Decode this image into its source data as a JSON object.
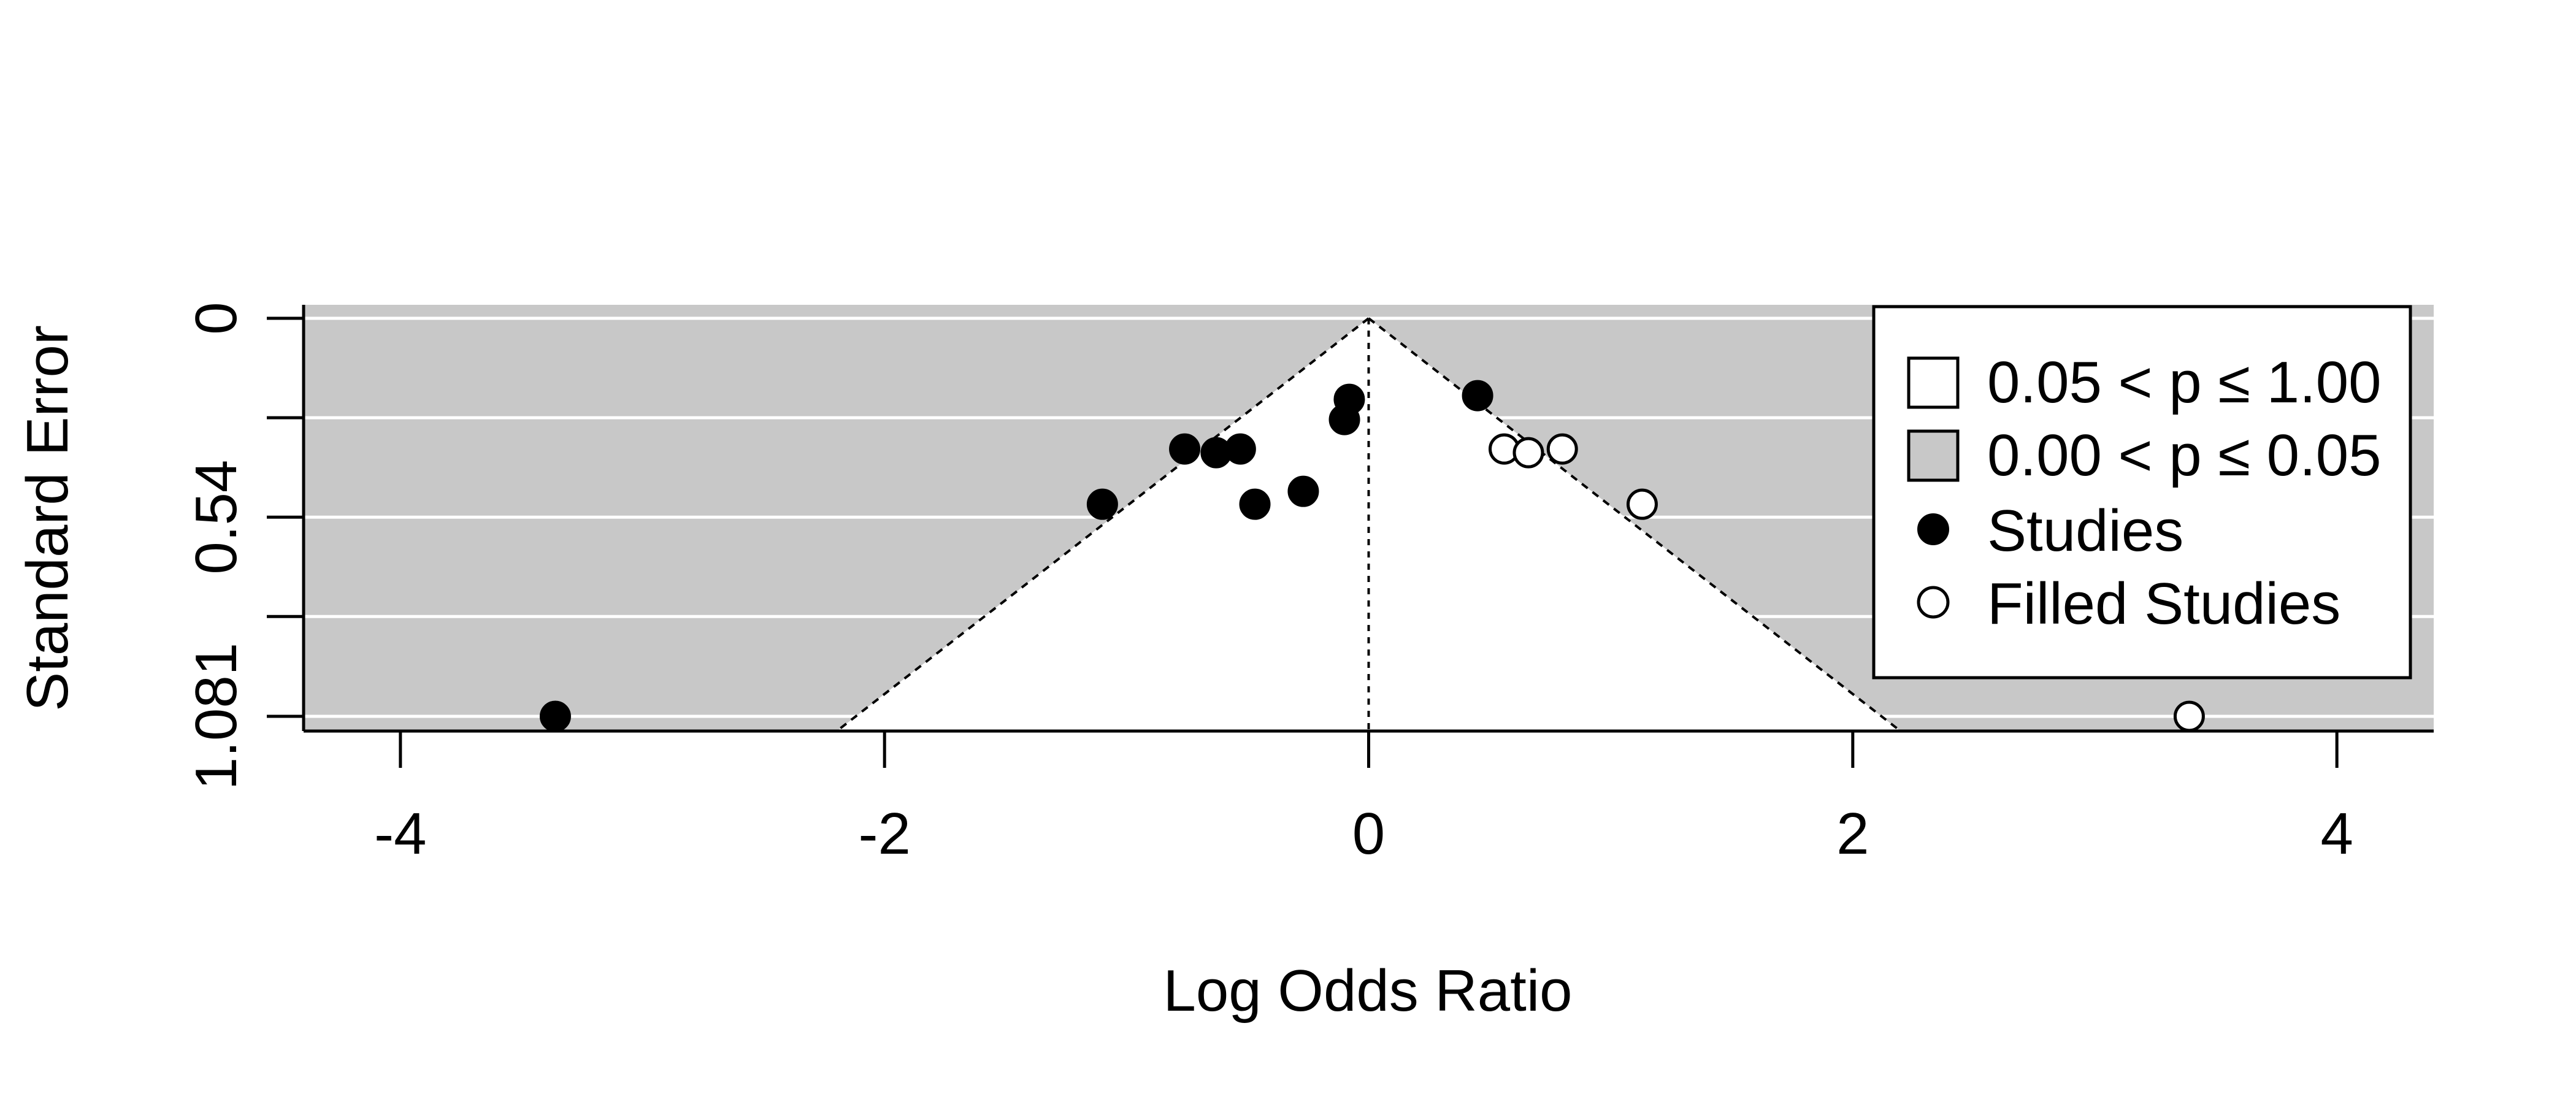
{
  "chart_data": {
    "type": "scatter",
    "subtype": "contour-enhanced funnel plot",
    "title": "",
    "xlabel": "Log Odds Ratio",
    "ylabel": "Standard Error",
    "xlim": [
      -4.4,
      4.4
    ],
    "ylim": [
      1.11,
      0
    ],
    "y_reversed": true,
    "grid": "horizontal",
    "legend_position": "top-right",
    "x_ticks": [
      {
        "value": -4,
        "label": "-4"
      },
      {
        "value": -2,
        "label": "-2"
      },
      {
        "value": 0,
        "label": "0"
      },
      {
        "value": 2,
        "label": "2"
      },
      {
        "value": 4,
        "label": "4"
      }
    ],
    "y_ticks": [
      {
        "value": 0,
        "label": "0"
      },
      {
        "value": 0.27,
        "label": ""
      },
      {
        "value": 0.54,
        "label": "0.54"
      },
      {
        "value": 0.81,
        "label": ""
      },
      {
        "value": 1.081,
        "label": "1.081"
      }
    ],
    "funnel": {
      "center": 0,
      "z": 1.96
    },
    "legend": [
      {
        "label": "0.05 < p ≤ 1.00",
        "kind": "box",
        "color": "#ffffff"
      },
      {
        "label": "0.00 < p ≤ 0.05",
        "kind": "box",
        "color": "#c8c8c8"
      },
      {
        "label": "Studies",
        "kind": "filled-point"
      },
      {
        "label": "Filled Studies",
        "kind": "open-point"
      }
    ],
    "series": [
      {
        "name": "Studies",
        "marker": "filled",
        "points": [
          {
            "x": -3.36,
            "y": 1.081
          },
          {
            "x": -1.1,
            "y": 0.505
          },
          {
            "x": -0.76,
            "y": 0.355
          },
          {
            "x": -0.63,
            "y": 0.365
          },
          {
            "x": -0.53,
            "y": 0.355
          },
          {
            "x": -0.47,
            "y": 0.505
          },
          {
            "x": -0.27,
            "y": 0.47
          },
          {
            "x": -0.1,
            "y": 0.275
          },
          {
            "x": -0.08,
            "y": 0.22
          },
          {
            "x": 0.45,
            "y": 0.21
          }
        ]
      },
      {
        "name": "Filled Studies",
        "marker": "open",
        "points": [
          {
            "x": 0.56,
            "y": 0.355
          },
          {
            "x": 0.66,
            "y": 0.365
          },
          {
            "x": 0.8,
            "y": 0.355
          },
          {
            "x": 1.13,
            "y": 0.505
          },
          {
            "x": 3.39,
            "y": 1.081
          }
        ]
      }
    ]
  },
  "colors": {
    "significant_region": "#c8c8c8",
    "nonsignificant_region": "#ffffff",
    "gridline": "#ffffff",
    "point_fill": "#000000",
    "open_point_fill": "#ffffff",
    "axis": "#000000"
  }
}
